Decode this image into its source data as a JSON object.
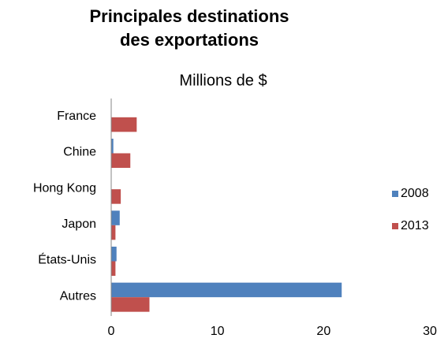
{
  "chart_data": {
    "type": "bar",
    "orientation": "horizontal",
    "title": [
      "Principales destinations",
      "des exportations"
    ],
    "subtitle": "Millions de $",
    "categories": [
      "France",
      "Chine",
      "Hong Kong",
      "Japon",
      "États-Unis",
      "Autres"
    ],
    "series": [
      {
        "name": "2008",
        "color": "#4f81bd",
        "values": [
          0,
          0.2,
          0,
          0.8,
          0.5,
          21.7
        ]
      },
      {
        "name": "2013",
        "color": "#c0504d",
        "values": [
          2.4,
          1.8,
          0.9,
          0.4,
          0.4,
          3.6
        ]
      }
    ],
    "xlim": [
      0,
      30
    ],
    "xticks": [
      0,
      10,
      20,
      30
    ],
    "grid": false,
    "legend": "right"
  }
}
